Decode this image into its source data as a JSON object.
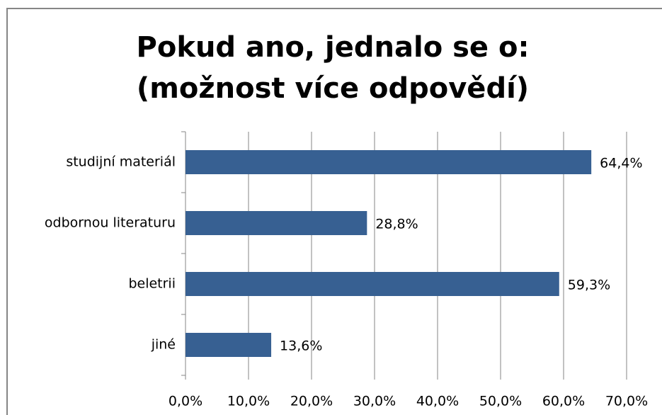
{
  "chart_data": {
    "type": "bar",
    "orientation": "horizontal",
    "title": "Pokud ano, jednalo se o: (možnost více odpovědí)",
    "categories": [
      "studijní materiál",
      "odbornou literaturu",
      "beletrii",
      "jiné"
    ],
    "values": [
      64.4,
      28.8,
      59.3,
      13.6
    ],
    "value_labels": [
      "64,4%",
      "28,8%",
      "59,3%",
      "13,6%"
    ],
    "color": "#376092",
    "xlim": [
      0,
      70
    ],
    "xticks": [
      {
        "value": 0,
        "label": "0,0%"
      },
      {
        "value": 10,
        "label": "10,0%"
      },
      {
        "value": 20,
        "label": "20,0%"
      },
      {
        "value": 30,
        "label": "30,0%"
      },
      {
        "value": 40,
        "label": "40,0%"
      },
      {
        "value": 50,
        "label": "50,0%"
      },
      {
        "value": 60,
        "label": "60,0%"
      },
      {
        "value": 70,
        "label": "70,0%"
      }
    ],
    "grid": true
  }
}
